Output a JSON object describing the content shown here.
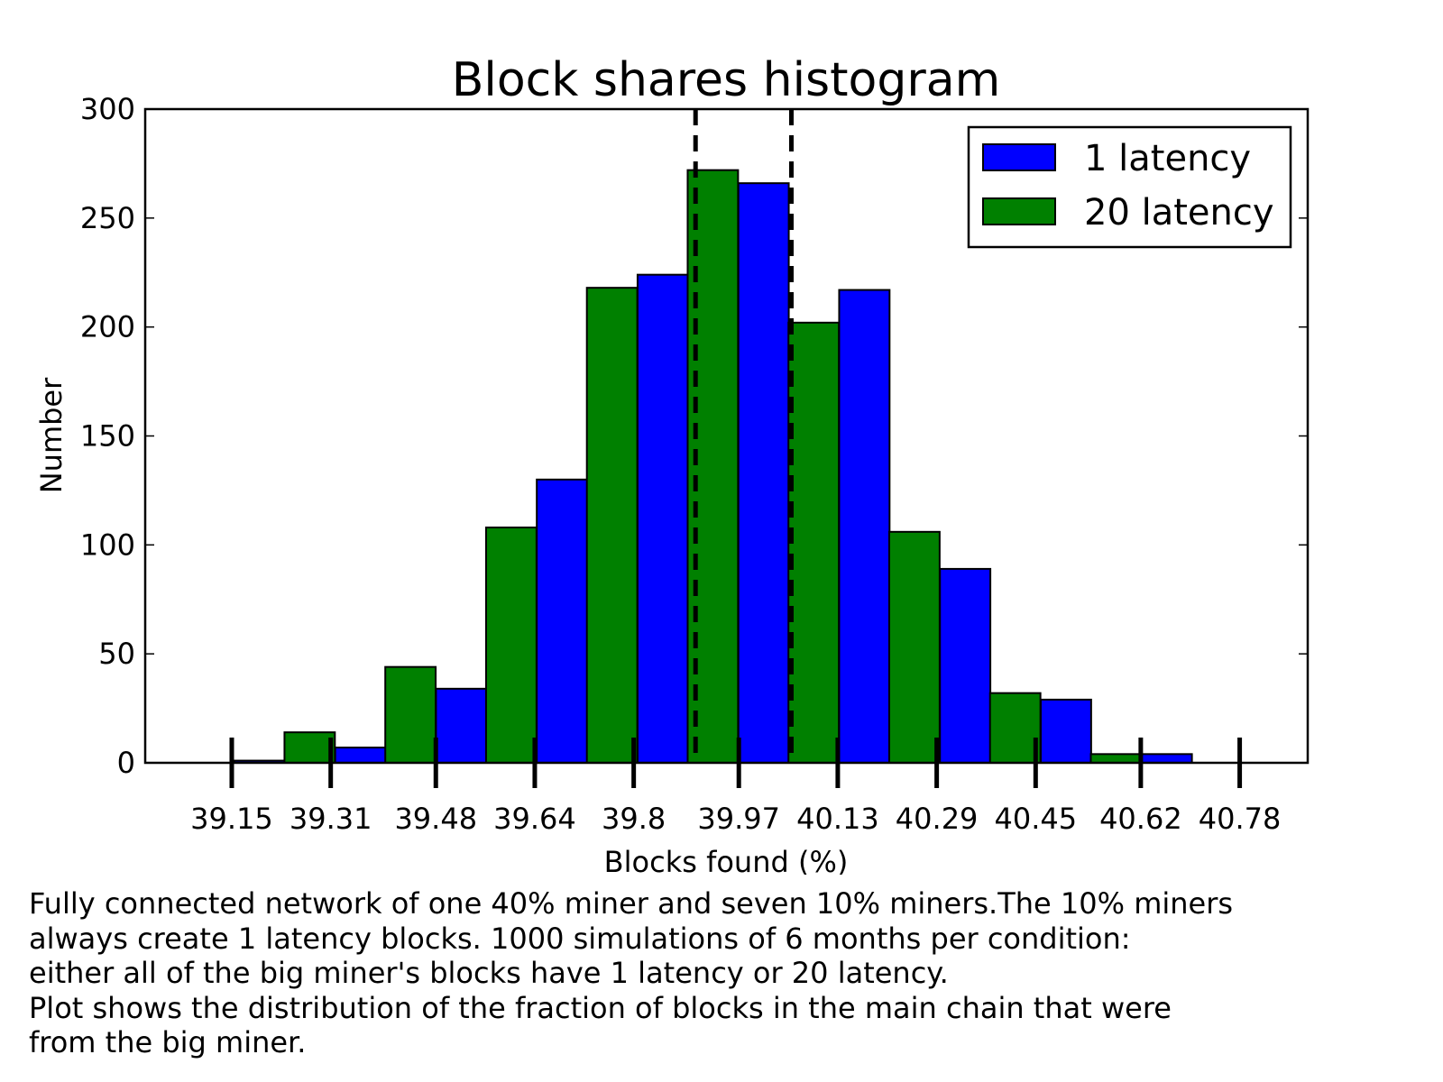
{
  "chart_data": {
    "type": "bar",
    "title": "Block shares histogram",
    "xlabel": "Blocks found (%)",
    "ylabel": "Number",
    "ylim": [
      0,
      300
    ],
    "xlim": [
      39.01,
      40.89
    ],
    "y_ticks": [
      "0",
      "50",
      "100",
      "150",
      "200",
      "250",
      "300"
    ],
    "x_tick_labels": [
      "39.15",
      "39.31",
      "39.48",
      "39.64",
      "39.8",
      "39.97",
      "40.13",
      "40.29",
      "40.45",
      "40.62",
      "40.78"
    ],
    "bar_width": 0.0815,
    "legend_position": "top-right",
    "grid": false,
    "series": [
      {
        "name": "1 latency",
        "color": "#0000ff",
        "bars": [
          {
            "x": 39.195,
            "value": 1
          },
          {
            "x": 39.358,
            "value": 7
          },
          {
            "x": 39.521,
            "value": 34
          },
          {
            "x": 39.684,
            "value": 130
          },
          {
            "x": 39.847,
            "value": 224
          },
          {
            "x": 40.01,
            "value": 266
          },
          {
            "x": 40.173,
            "value": 217
          },
          {
            "x": 40.336,
            "value": 89
          },
          {
            "x": 40.499,
            "value": 29
          },
          {
            "x": 40.662,
            "value": 4
          }
        ]
      },
      {
        "name": "20 latency",
        "color": "#008000",
        "bars": [
          {
            "x": 39.276,
            "value": 14
          },
          {
            "x": 39.439,
            "value": 44
          },
          {
            "x": 39.602,
            "value": 108
          },
          {
            "x": 39.765,
            "value": 218
          },
          {
            "x": 39.928,
            "value": 272
          },
          {
            "x": 40.091,
            "value": 202
          },
          {
            "x": 40.254,
            "value": 106
          },
          {
            "x": 40.417,
            "value": 32
          },
          {
            "x": 40.58,
            "value": 4
          }
        ]
      }
    ],
    "reference_lines": [
      39.9,
      40.055
    ]
  },
  "caption": {
    "lines": [
      "Fully connected network of one 40% miner and seven 10% miners.The 10% miners",
      "always create 1 latency blocks. 1000 simulations of 6 months per condition:",
      "either all of the big miner's blocks have 1 latency or 20 latency.",
      "Plot shows the distribution of the fraction of blocks in the main chain that were",
      "from the big miner."
    ]
  }
}
